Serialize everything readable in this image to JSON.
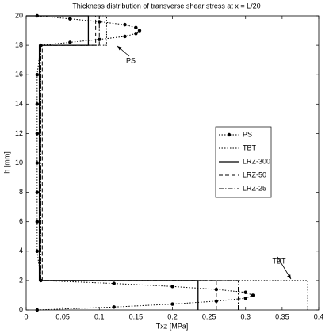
{
  "chart_data": {
    "type": "line",
    "title": "Thickness distribution of transverse shear stress at x = L/20",
    "xlabel": "Txz [MPa]",
    "ylabel": "h [mm]",
    "xlim": [
      0,
      0.4
    ],
    "ylim": [
      0,
      20
    ],
    "xticks": [
      0,
      0.05,
      0.1,
      0.15,
      0.2,
      0.25,
      0.3,
      0.35,
      0.4
    ],
    "yticks": [
      0,
      2,
      4,
      6,
      8,
      10,
      12,
      14,
      16,
      18,
      20
    ],
    "legend": "right",
    "annotations": [
      "PS",
      "TBT"
    ],
    "series": [
      {
        "name": "PS",
        "color": "#000000",
        "style": "dotted-markers",
        "x": [
          0.015,
          0.12,
          0.2,
          0.26,
          0.3,
          0.31,
          0.3,
          0.26,
          0.2,
          0.12,
          0.02,
          0.015,
          0.015,
          0.015,
          0.015,
          0.015,
          0.015,
          0.015,
          0.02,
          0.06,
          0.1,
          0.135,
          0.15,
          0.155,
          0.15,
          0.135,
          0.1,
          0.06,
          0.015
        ],
        "values": [
          0,
          0.2,
          0.4,
          0.6,
          0.8,
          1,
          1.2,
          1.4,
          1.6,
          1.8,
          2,
          4,
          6,
          8,
          10,
          12,
          14,
          16,
          18,
          18.2,
          18.4,
          18.6,
          18.8,
          19,
          19.2,
          19.4,
          19.6,
          19.8,
          20
        ]
      },
      {
        "name": "TBT",
        "color": "#000000",
        "style": "dotted",
        "x": [
          0.385,
          0.385,
          0.02,
          0.02,
          0.11,
          0.11,
          0
        ],
        "values": [
          0,
          2,
          2,
          18,
          18,
          20,
          20
        ]
      },
      {
        "name": "LRZ-300",
        "color": "#000000",
        "style": "solid",
        "x": [
          0.235,
          0.235,
          0.018,
          0.018,
          0.085,
          0.085,
          0
        ],
        "values": [
          0,
          2,
          2,
          18,
          18,
          20,
          20
        ]
      },
      {
        "name": "LRZ-50",
        "color": "#000000",
        "style": "dashed",
        "x": [
          0.26,
          0.26,
          0.022,
          0.022,
          0.095,
          0.095,
          0
        ],
        "values": [
          0,
          2,
          2,
          18,
          18,
          20,
          20
        ]
      },
      {
        "name": "LRZ-25",
        "color": "#000000",
        "style": "dashdot",
        "x": [
          0.29,
          0.29,
          0.02,
          0.02,
          0.1,
          0.1,
          0
        ],
        "values": [
          0,
          2,
          2,
          18,
          18,
          20,
          20
        ]
      }
    ]
  }
}
